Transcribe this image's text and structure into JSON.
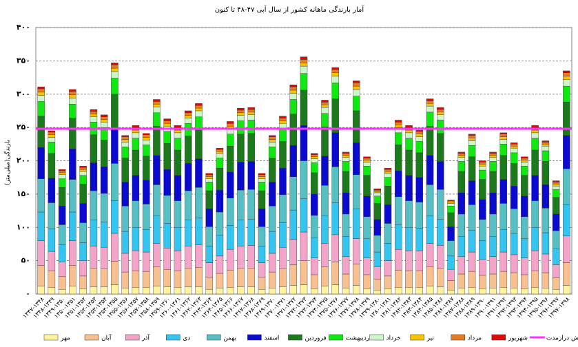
{
  "chart_data": {
    "type": "stacked_bar",
    "title": "آمار بارندگی ماهانه کشور از سال آبی ۴۷-۴۸ تا کنون",
    "y_label": "بارندگی(میلی‌متر)",
    "categories": [
      "۱۳۴۷-۱۳۴۸",
      "۱۳۴۸-۱۳۴۹",
      "۱۳۴۹-۱۳۵۰",
      "۱۳۵۰-۱۳۵۱",
      "۱۳۵۱-۱۳۵۲",
      "۱۳۵۲-۱۳۵۳",
      "۱۳۵۳-۱۳۵۴",
      "۱۳۵۴-۱۳۵۵",
      "۱۳۵۵-۱۳۵۶",
      "۱۳۵۶-۱۳۵۷",
      "۱۳۵۷-۱۳۵۸",
      "۱۳۵۸-۱۳۵۹",
      "۱۳۵۹-۱۳۶۰",
      "۱۳۶۰-۱۳۶۱",
      "۱۳۶۱-۱۳۶۲",
      "۱۳۶۲-۱۳۶۳",
      "۱۳۶۳-۱۳۶۴",
      "۱۳۶۴-۱۳۶۵",
      "۱۳۶۵-۱۳۶۶",
      "۱۳۶۶-۱۳۶۷",
      "۱۳۶۷-۱۳۶۸",
      "۱۳۶۸-۱۳۶۹",
      "۱۳۶۹-۱۳۷۰",
      "۱۳۷۰-۱۳۷۱",
      "۱۳۷۱-۱۳۷۲",
      "۱۳۷۲-۱۳۷۳",
      "۱۳۷۳-۱۳۷۴",
      "۱۳۷۴-۱۳۷۵",
      "۱۳۷۵-۱۳۷۶",
      "۱۳۷۶-۱۳۷۷",
      "۱۳۷۷-۱۳۷۸",
      "۱۳۷۸-۱۳۷۹",
      "۱۳۷۹-۱۳۸۰",
      "۱۳۸۰-۱۳۸۱",
      "۱۳۸۱-۱۳۸۲",
      "۱۳۸۲-۱۳۸۳",
      "۱۳۸۳-۱۳۸۴",
      "۱۳۸۴-۱۳۸۵",
      "۱۳۸۵-۱۳۸۶",
      "۱۳۸۶-۱۳۸۷",
      "۱۳۸۷-۱۳۸۸",
      "۱۳۸۸-۱۳۸۹",
      "۱۳۸۹-۱۳۹۰",
      "۱۳۹۰-۱۳۹۱",
      "۱۳۹۱-۱۳۹۲",
      "۱۳۹۲-۱۳۹۳",
      "۱۳۹۳-۱۳۹۴",
      "۱۳۹۴-۱۳۹۵",
      "۱۳۹۵-۱۳۹۶",
      "۱۳۹۶-۱۳۹۷",
      "۱۳۹۷-۱۳۹۸"
    ],
    "series": [
      {
        "name": "مهر",
        "color": "#fff3a0",
        "values": [
          12,
          10,
          7,
          12,
          8,
          11,
          11,
          14,
          9,
          10,
          10,
          12,
          11,
          10,
          11,
          11,
          7,
          9,
          10,
          11,
          11,
          7,
          9,
          11,
          13,
          14,
          8,
          12,
          14,
          9,
          13,
          8,
          6,
          8,
          10,
          10,
          10,
          12,
          11,
          6,
          9,
          10,
          8,
          9,
          10,
          9,
          8,
          10,
          9,
          7,
          13
        ]
      },
      {
        "name": "آبان",
        "color": "#f9c08f",
        "values": [
          31,
          25,
          19,
          31,
          19,
          28,
          27,
          35,
          24,
          25,
          24,
          29,
          26,
          25,
          28,
          29,
          18,
          22,
          26,
          28,
          28,
          18,
          24,
          27,
          31,
          36,
          21,
          29,
          34,
          21,
          32,
          21,
          16,
          19,
          26,
          25,
          25,
          29,
          28,
          14,
          21,
          24,
          20,
          21,
          24,
          23,
          21,
          25,
          23,
          17,
          34
        ]
      },
      {
        "name": "آذر",
        "color": "#f3a4c8",
        "values": [
          37,
          29,
          22,
          37,
          23,
          33,
          32,
          42,
          28,
          30,
          29,
          35,
          32,
          30,
          33,
          34,
          22,
          26,
          31,
          33,
          34,
          22,
          28,
          32,
          38,
          43,
          25,
          35,
          41,
          26,
          38,
          25,
          19,
          23,
          31,
          30,
          30,
          35,
          34,
          17,
          26,
          29,
          24,
          26,
          29,
          27,
          25,
          30,
          28,
          20,
          40
        ]
      },
      {
        "name": "دی",
        "color": "#33c4f0",
        "values": [
          43,
          34,
          26,
          43,
          27,
          39,
          38,
          49,
          33,
          35,
          34,
          41,
          37,
          35,
          39,
          40,
          25,
          31,
          36,
          39,
          39,
          25,
          33,
          37,
          44,
          50,
          30,
          41,
          48,
          30,
          45,
          29,
          22,
          26,
          37,
          35,
          34,
          41,
          39,
          20,
          30,
          33,
          28,
          30,
          34,
          32,
          29,
          35,
          32,
          24,
          47
        ]
      },
      {
        "name": "بهمن",
        "color": "#55bfc4",
        "values": [
          50,
          39,
          30,
          49,
          30,
          44,
          43,
          56,
          38,
          40,
          38,
          47,
          42,
          40,
          44,
          46,
          29,
          35,
          41,
          45,
          45,
          29,
          38,
          42,
          50,
          57,
          34,
          46,
          54,
          34,
          51,
          33,
          25,
          30,
          42,
          40,
          39,
          47,
          45,
          23,
          34,
          38,
          32,
          34,
          39,
          37,
          33,
          40,
          37,
          27,
          54
        ]
      },
      {
        "name": "اسفند",
        "color": "#0b0bd0",
        "values": [
          47,
          37,
          28,
          46,
          29,
          42,
          40,
          52,
          36,
          38,
          36,
          44,
          39,
          38,
          41,
          43,
          27,
          33,
          39,
          42,
          42,
          27,
          36,
          40,
          47,
          53,
          32,
          44,
          51,
          32,
          48,
          31,
          24,
          28,
          39,
          38,
          37,
          44,
          42,
          21,
          32,
          36,
          30,
          32,
          36,
          34,
          31,
          38,
          35,
          25,
          50
        ]
      },
      {
        "name": "فروردین",
        "color": "#1c7a1c",
        "values": [
          47,
          37,
          28,
          46,
          29,
          42,
          40,
          52,
          36,
          38,
          36,
          44,
          39,
          38,
          41,
          43,
          27,
          33,
          39,
          42,
          42,
          27,
          36,
          40,
          47,
          53,
          32,
          44,
          51,
          32,
          48,
          31,
          24,
          28,
          39,
          38,
          37,
          44,
          42,
          21,
          32,
          36,
          30,
          32,
          36,
          34,
          31,
          38,
          35,
          25,
          50
        ]
      },
      {
        "name": "اردیبهشت",
        "color": "#11e811",
        "values": [
          22,
          17,
          13,
          21,
          13,
          19,
          19,
          24,
          17,
          18,
          17,
          20,
          18,
          18,
          19,
          20,
          13,
          15,
          18,
          20,
          20,
          13,
          17,
          19,
          22,
          25,
          15,
          20,
          24,
          15,
          22,
          14,
          11,
          13,
          18,
          18,
          17,
          21,
          20,
          10,
          15,
          17,
          14,
          15,
          17,
          16,
          14,
          18,
          16,
          12,
          24
        ]
      },
      {
        "name": "خرداد",
        "color": "#ccf5c8",
        "values": [
          9,
          7,
          6,
          9,
          6,
          8,
          8,
          10,
          7,
          8,
          7,
          9,
          8,
          8,
          8,
          9,
          5,
          7,
          8,
          8,
          8,
          5,
          7,
          8,
          9,
          11,
          6,
          9,
          10,
          6,
          10,
          6,
          5,
          6,
          8,
          8,
          7,
          9,
          8,
          4,
          6,
          7,
          6,
          6,
          7,
          7,
          6,
          8,
          7,
          5,
          10
        ]
      },
      {
        "name": "تیر",
        "color": "#f5c400",
        "values": [
          5,
          4,
          3,
          5,
          3,
          4,
          4,
          5,
          4,
          4,
          4,
          4,
          4,
          4,
          4,
          4,
          3,
          3,
          4,
          4,
          4,
          3,
          4,
          4,
          5,
          5,
          3,
          4,
          5,
          3,
          5,
          3,
          2,
          3,
          4,
          4,
          4,
          4,
          4,
          2,
          3,
          4,
          3,
          3,
          4,
          3,
          3,
          4,
          3,
          3,
          5
        ]
      },
      {
        "name": "مرداد",
        "color": "#e87a22",
        "values": [
          5,
          4,
          3,
          5,
          3,
          4,
          4,
          5,
          4,
          4,
          4,
          4,
          4,
          4,
          4,
          4,
          3,
          3,
          4,
          4,
          4,
          3,
          4,
          4,
          5,
          5,
          3,
          4,
          5,
          3,
          5,
          3,
          2,
          3,
          4,
          4,
          4,
          4,
          4,
          2,
          3,
          4,
          3,
          3,
          4,
          3,
          3,
          4,
          3,
          3,
          5
        ]
      },
      {
        "name": "شهریور",
        "color": "#dd0a0a",
        "values": [
          3,
          2,
          2,
          3,
          2,
          3,
          3,
          3,
          2,
          3,
          2,
          3,
          3,
          3,
          3,
          3,
          2,
          2,
          3,
          3,
          3,
          2,
          2,
          3,
          3,
          4,
          2,
          3,
          3,
          2,
          3,
          2,
          2,
          2,
          3,
          3,
          2,
          3,
          3,
          1,
          2,
          2,
          2,
          2,
          2,
          2,
          2,
          3,
          2,
          2,
          3
        ]
      }
    ],
    "reference_line": {
      "name": "میانگین بارش درازمدت",
      "value": 248,
      "color": "#ff33ff"
    },
    "ylim": [
      0,
      400
    ],
    "yticks": [
      {
        "value": 0,
        "label": "۰"
      },
      {
        "value": 50,
        "label": "۵۰"
      },
      {
        "value": 100,
        "label": "۱۰۰"
      },
      {
        "value": 150,
        "label": "۱۵۰"
      },
      {
        "value": 200,
        "label": "۲۰۰"
      },
      {
        "value": 250,
        "label": "۲۵۰"
      },
      {
        "value": 300,
        "label": "۳۰۰"
      },
      {
        "value": 350,
        "label": "۳۵۰"
      },
      {
        "value": 400,
        "label": "۴۰۰"
      }
    ],
    "grid": true
  }
}
